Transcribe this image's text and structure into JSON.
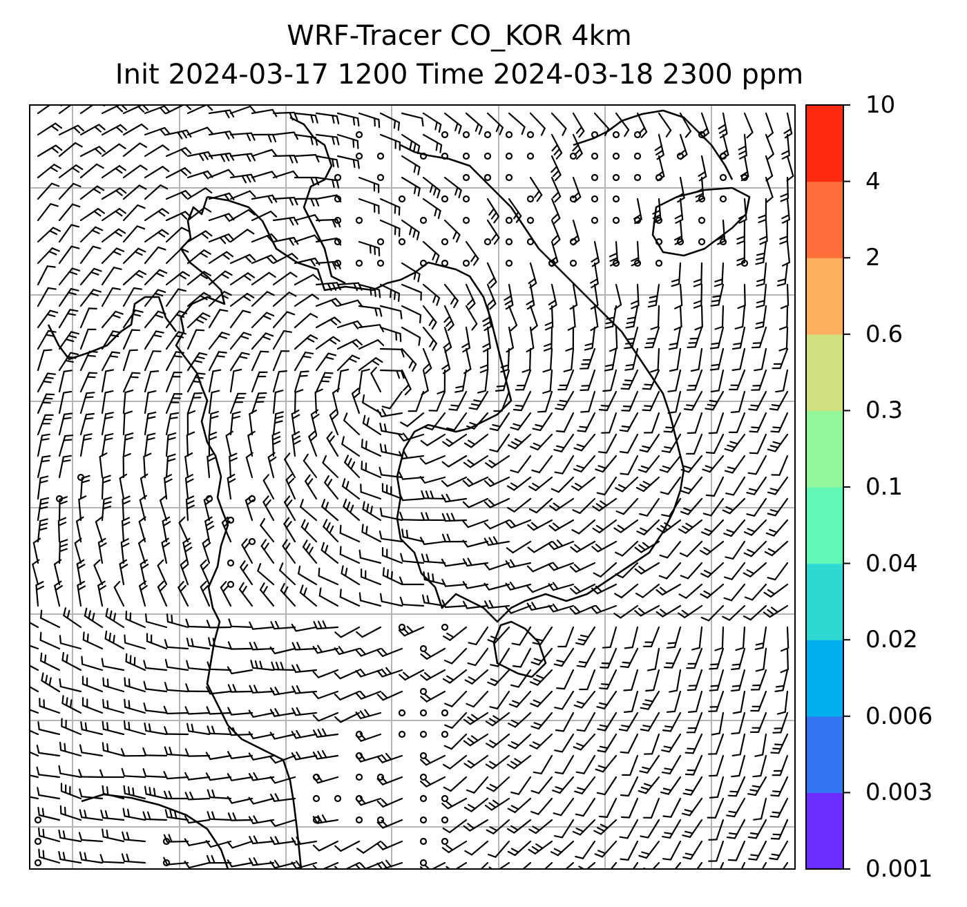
{
  "title": {
    "line1": "WRF-Tracer CO_KOR 4km",
    "line2": "Init 2024-03-17 1200 Time 2024-03-18 2300 ppm"
  },
  "colorbar": {
    "tick_labels": [
      "0.001",
      "0.003",
      "0.006",
      "0.02",
      "0.04",
      "0.1",
      "0.3",
      "0.6",
      "2",
      "4",
      "10"
    ],
    "bin_colors": [
      "#6a2cff",
      "#3375f3",
      "#00b0ec",
      "#2ed9d2",
      "#62f7b7",
      "#93f79a",
      "#cfe07e",
      "#fdb060",
      "#fe6e3a",
      "#ff2a10"
    ]
  },
  "map": {
    "gridlines": true,
    "field": "wind barbs over coastline",
    "colors": {
      "land_line": "#000000",
      "grid": "#b0b0b0"
    }
  }
}
